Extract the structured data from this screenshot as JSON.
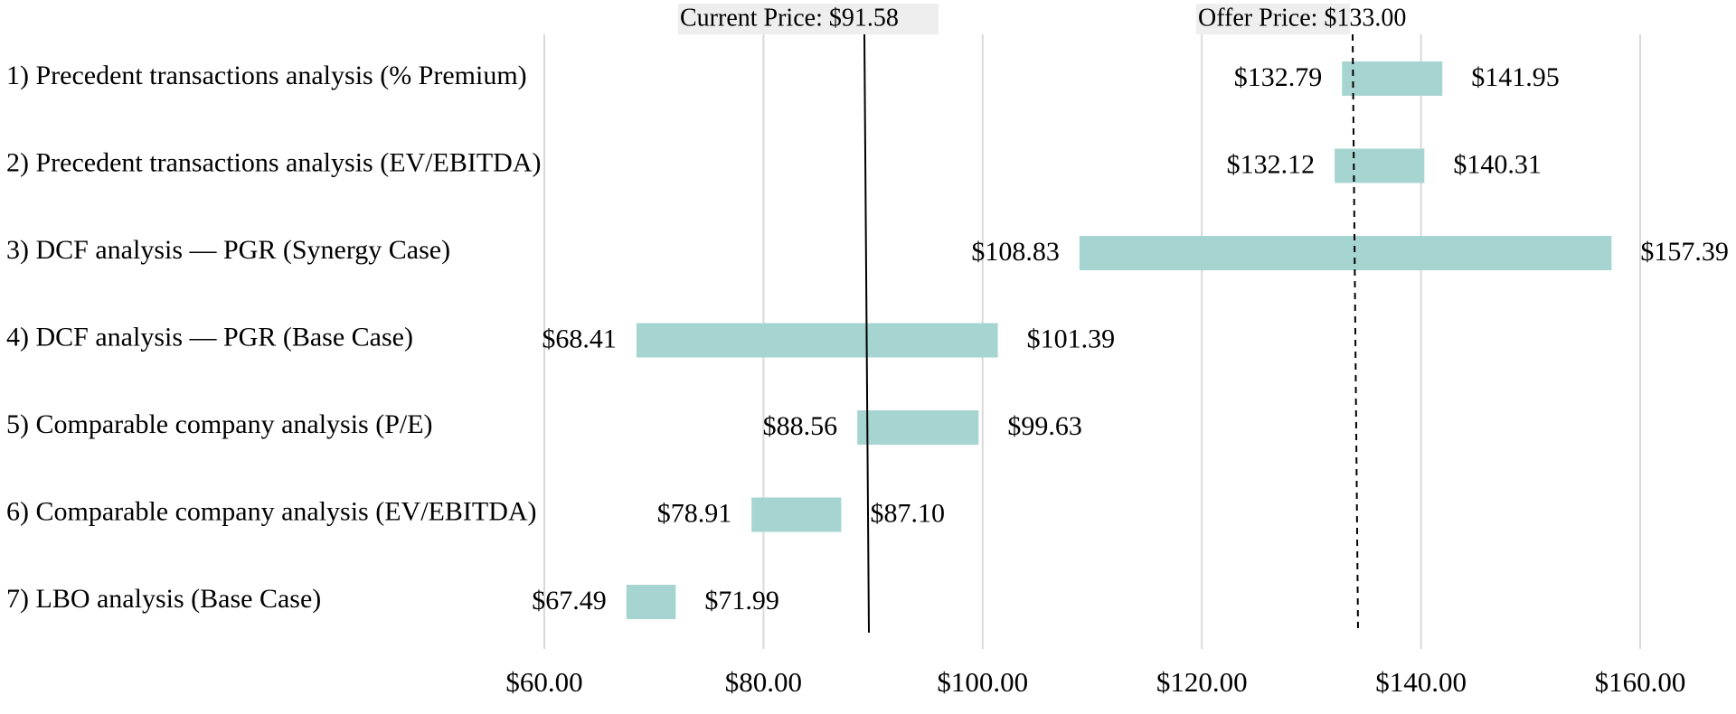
{
  "chart_data": {
    "type": "bar",
    "subtype": "floating-range-horizontal",
    "title": "",
    "xlabel": "",
    "ylabel": "",
    "xlim": [
      60,
      160
    ],
    "x_ticks": [
      60,
      80,
      100,
      120,
      140,
      160
    ],
    "x_tick_labels": [
      "$60.00",
      "$80.00",
      "$100.00",
      "$120.00",
      "$140.00",
      "$160.00"
    ],
    "grid": "vertical",
    "bar_color": "#a6d5d1",
    "categories": [
      "1) Precedent transactions analysis (% Premium)",
      "2) Precedent transactions analysis (EV/EBITDA)",
      "3) DCF analysis — PGR (Synergy Case)",
      "4) DCF analysis — PGR (Base Case)",
      "5) Comparable company analysis (P/E)",
      "6) Comparable company analysis (EV/EBITDA)",
      "7) LBO analysis (Base Case)"
    ],
    "low": [
      132.79,
      132.12,
      108.83,
      68.41,
      88.56,
      78.91,
      67.49
    ],
    "high": [
      141.95,
      140.31,
      157.39,
      101.39,
      99.63,
      87.1,
      71.99
    ],
    "low_labels": [
      "$132.79",
      "$132.12",
      "$108.83",
      "$68.41",
      "$88.56",
      "$78.91",
      "$67.49"
    ],
    "high_labels": [
      "$141.95",
      "$140.31",
      "$157.39",
      "$101.39",
      "$99.63",
      "$87.10",
      "$71.99"
    ],
    "reference_lines": [
      {
        "label": "Current Price: $91.58",
        "value": 91.58,
        "style": "solid"
      },
      {
        "label": "Offer Price: $133.00",
        "value": 133.0,
        "style": "dashed"
      }
    ]
  }
}
